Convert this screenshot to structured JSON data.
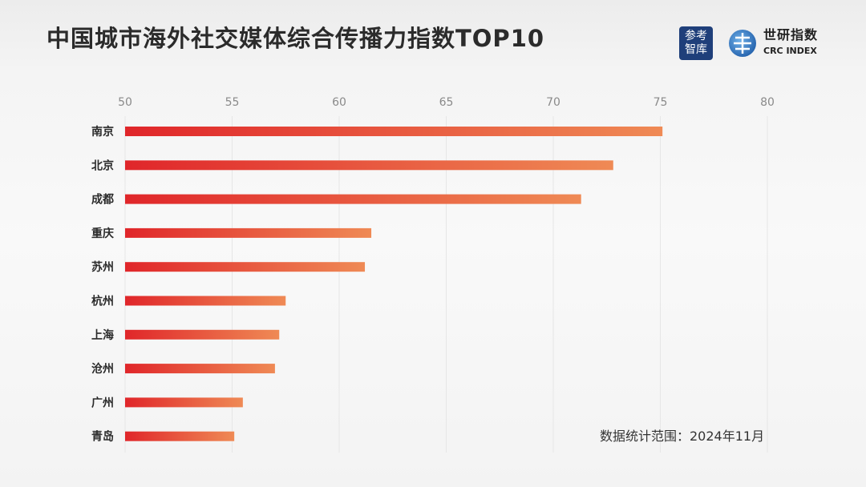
{
  "title": "中国城市海外社交媒体综合传播力指数TOP10",
  "logos": {
    "left": "参考智库",
    "right_cn": "世研指数",
    "right_en": "CRC INDEX"
  },
  "footnote": "数据统计范围：2024年11月",
  "colors": {
    "bar_start": "#e0262a",
    "bar_end": "#ef8a55"
  },
  "chart_data": {
    "type": "bar",
    "orientation": "horizontal",
    "title": "中国城市海外社交媒体综合传播力指数TOP10",
    "categories": [
      "南京",
      "北京",
      "成都",
      "重庆",
      "苏州",
      "杭州",
      "上海",
      "沧州",
      "广州",
      "青岛"
    ],
    "values": [
      75.1,
      72.8,
      71.3,
      61.5,
      61.2,
      57.5,
      57.2,
      57.0,
      55.5,
      55.1
    ],
    "xlim": [
      50,
      80
    ],
    "ticks": [
      50,
      55,
      60,
      65,
      70,
      75,
      80
    ],
    "tick_position": "top",
    "grid": true,
    "xlabel": "",
    "ylabel": ""
  }
}
